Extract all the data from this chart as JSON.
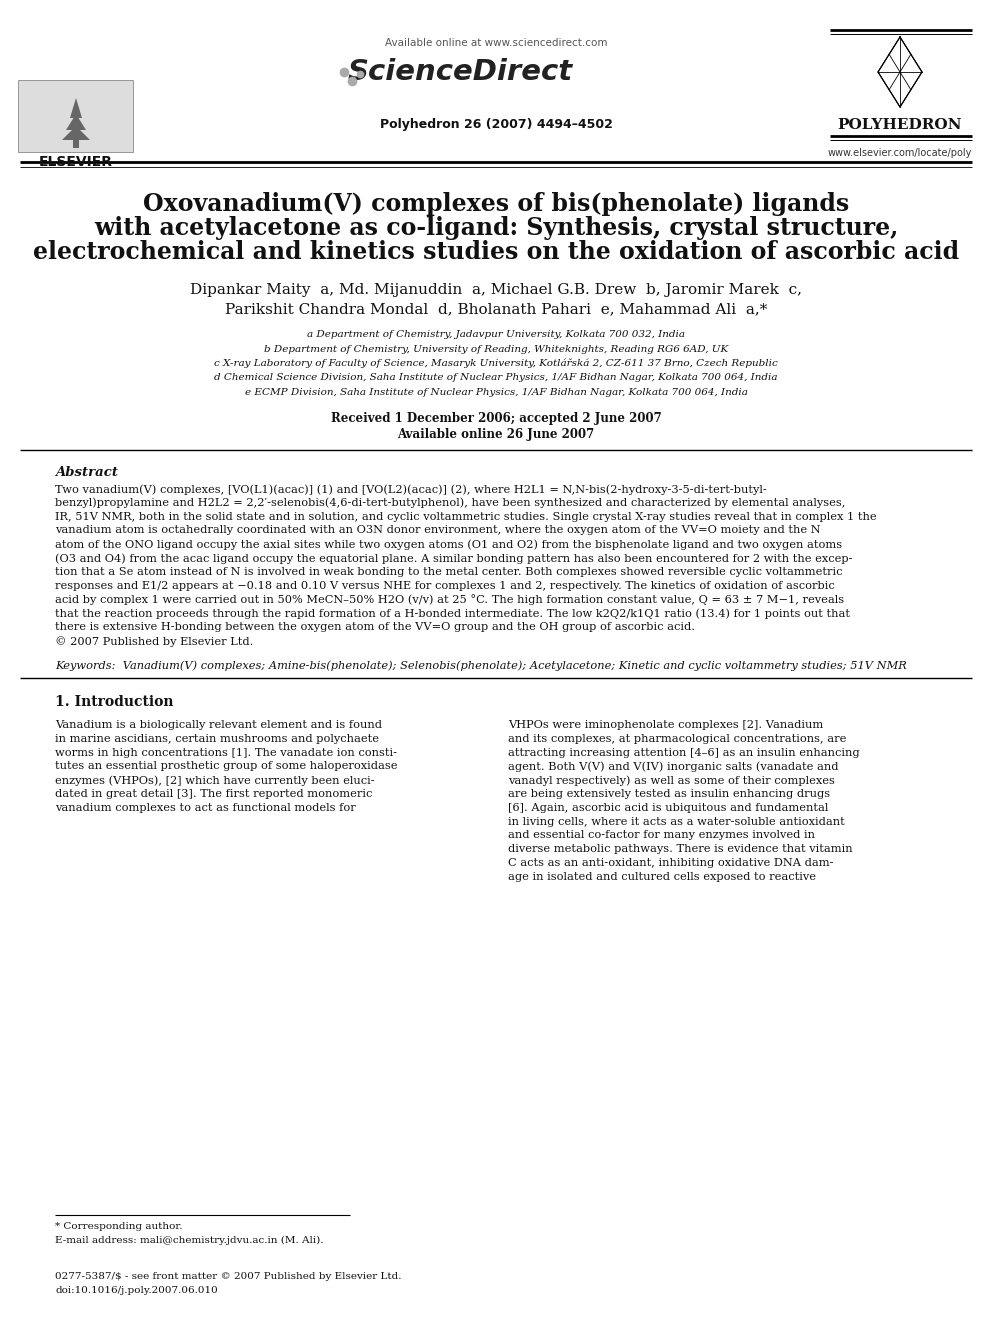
{
  "bg_color": "#ffffff",
  "header": {
    "available_online": "Available online at www.sciencedirect.com",
    "sciencedirect": "ScienceDirect",
    "journal": "Polyhedron 26 (2007) 4494–4502",
    "elsevier": "ELSEVIER",
    "polyhedron": "POLYHEDRON",
    "website": "www.elsevier.com/locate/poly"
  },
  "title_line1": "Oxovanadium(V) complexes of bis(phenolate) ligands",
  "title_line2": "with acetylacetone as co-ligand: Synthesis, crystal structure,",
  "title_line3": "electrochemical and kinetics studies on the oxidation of ascorbic acid",
  "authors_line1": "Dipankar Maity  a, Md. Mijanuddin  a, Michael G.B. Drew  b, Jaromir Marek  c,",
  "authors_line2": "Parikshit Chandra Mondal  d, Bholanath Pahari  e, Mahammad Ali  a,*",
  "affiliations": [
    "a Department of Chemistry, Jadavpur University, Kolkata 700 032, India",
    "b Department of Chemistry, University of Reading, Whiteknights, Reading RG6 6AD, UK",
    "c X-ray Laboratory of Faculty of Science, Masaryk University, Kotlářská 2, CZ-611 37 Brno, Czech Republic",
    "d Chemical Science Division, Saha Institute of Nuclear Physics, 1/AF Bidhan Nagar, Kolkata 700 064, India",
    "e ECMP Division, Saha Institute of Nuclear Physics, 1/AF Bidhan Nagar, Kolkata 700 064, India"
  ],
  "received": "Received 1 December 2006; accepted 2 June 2007",
  "available": "Available online 26 June 2007",
  "abstract_title": "Abstract",
  "abstract_lines": [
    "Two vanadium(V) complexes, [VO(L1)(acac)] (1) and [VO(L2)(acac)] (2), where H2L1 = N,N-bis(2-hydroxy-3-5-di-tert-butyl-",
    "benzyl)propylamine and H2L2 = 2,2′-selenobis(4,6-di-tert-butylphenol), have been synthesized and characterized by elemental analyses,",
    "IR, 51V NMR, both in the solid state and in solution, and cyclic voltammetric studies. Single crystal X-ray studies reveal that in complex 1 the",
    "vanadium atom is octahedrally coordinated with an O3N donor environment, where the oxygen atom of the VV=O moiety and the N",
    "atom of the ONO ligand occupy the axial sites while two oxygen atoms (O1 and O2) from the bisphenolate ligand and two oxygen atoms",
    "(O3 and O4) from the acac ligand occupy the equatorial plane. A similar bonding pattern has also been encountered for 2 with the excep-",
    "tion that a Se atom instead of N is involved in weak bonding to the metal center. Both complexes showed reversible cyclic voltammetric",
    "responses and E1/2 appears at −0.18 and 0.10 V versus NHE for complexes 1 and 2, respectively. The kinetics of oxidation of ascorbic",
    "acid by complex 1 were carried out in 50% MeCN–50% H2O (v/v) at 25 °C. The high formation constant value, Q = 63 ± 7 M−1, reveals",
    "that the reaction proceeds through the rapid formation of a H-bonded intermediate. The low k2Q2/k1Q1 ratio (13.4) for 1 points out that",
    "there is extensive H-bonding between the oxygen atom of the VV=O group and the OH group of ascorbic acid.",
    "© 2007 Published by Elsevier Ltd."
  ],
  "keywords": "Keywords:  Vanadium(V) complexes; Amine-bis(phenolate); Selenobis(phenolate); Acetylacetone; Kinetic and cyclic voltammetry studies; 51V NMR",
  "section1_title": "1. Introduction",
  "intro_col1_lines": [
    "Vanadium is a biologically relevant element and is found",
    "in marine ascidians, certain mushrooms and polychaete",
    "worms in high concentrations [1]. The vanadate ion consti-",
    "tutes an essential prosthetic group of some haloperoxidase",
    "enzymes (VHPOs), [2] which have currently been eluci-",
    "dated in great detail [3]. The first reported monomeric",
    "vanadium complexes to act as functional models for"
  ],
  "intro_col2_lines": [
    "VHPOs were iminophenolate complexes [2]. Vanadium",
    "and its complexes, at pharmacological concentrations, are",
    "attracting increasing attention [4–6] as an insulin enhancing",
    "agent. Both V(V) and V(IV) inorganic salts (vanadate and",
    "vanadyl respectively) as well as some of their complexes",
    "are being extensively tested as insulin enhancing drugs",
    "[6]. Again, ascorbic acid is ubiquitous and fundamental",
    "in living cells, where it acts as a water-soluble antioxidant",
    "and essential co-factor for many enzymes involved in",
    "diverse metabolic pathways. There is evidence that vitamin",
    "C acts as an anti-oxidant, inhibiting oxidative DNA dam-",
    "age in isolated and cultured cells exposed to reactive"
  ],
  "footer_note": "* Corresponding author.",
  "footer_email": "E-mail address: mali@chemistry.jdvu.ac.in (M. Ali).",
  "footer_issn": "0277-5387/$ - see front matter © 2007 Published by Elsevier Ltd.",
  "footer_doi": "doi:10.1016/j.poly.2007.06.010"
}
